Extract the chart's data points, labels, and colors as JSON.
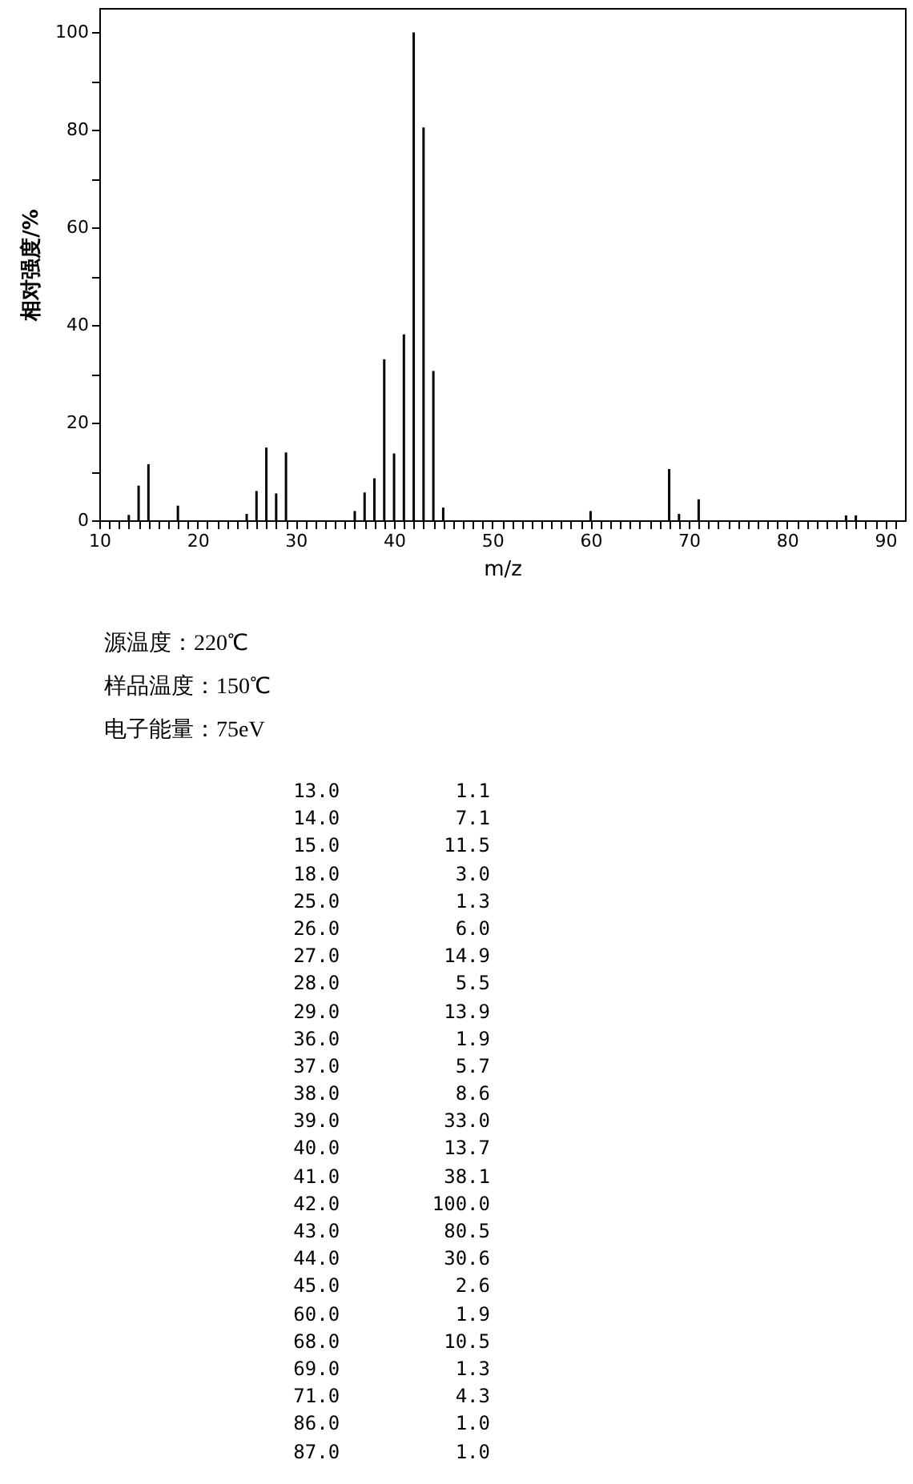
{
  "chart_data": [
    {
      "type": "bar",
      "xlabel": "m/z",
      "ylabel": "相对强度/%",
      "x": [
        13,
        14,
        15,
        18,
        25,
        26,
        27,
        28,
        29,
        36,
        37,
        38,
        39,
        40,
        41,
        42,
        43,
        44,
        45,
        60,
        68,
        69,
        71,
        86,
        87
      ],
      "series": [
        {
          "color": "#000000",
          "values": [
            1.1,
            7.1,
            11.5,
            3.0,
            1.3,
            6.0,
            14.9,
            5.5,
            13.9,
            1.9,
            5.7,
            8.6,
            33.0,
            13.7,
            38.1,
            100.0,
            80.5,
            30.6,
            2.6,
            1.9,
            10.5,
            1.3,
            4.3,
            1.0,
            1.0
          ]
        }
      ],
      "xlim": [
        10,
        92
      ],
      "ylim": [
        0,
        105
      ],
      "xticks": [
        10,
        {
          "value": 11,
          "label": null
        },
        {
          "value": 12,
          "label": null
        },
        {
          "value": 13,
          "label": null
        },
        {
          "value": 14,
          "label": null
        },
        {
          "value": 15,
          "label": null
        },
        {
          "value": 16,
          "label": null
        },
        {
          "value": 17,
          "label": null
        },
        {
          "value": 18,
          "label": null
        },
        {
          "value": 19,
          "label": null
        },
        20,
        {
          "value": 21,
          "label": null
        },
        {
          "value": 22,
          "label": null
        },
        {
          "value": 23,
          "label": null
        },
        {
          "value": 24,
          "label": null
        },
        {
          "value": 25,
          "label": null
        },
        {
          "value": 26,
          "label": null
        },
        {
          "value": 27,
          "label": null
        },
        {
          "value": 28,
          "label": null
        },
        {
          "value": 29,
          "label": null
        },
        30,
        {
          "value": 31,
          "label": null
        },
        {
          "value": 32,
          "label": null
        },
        {
          "value": 33,
          "label": null
        },
        {
          "value": 34,
          "label": null
        },
        {
          "value": 35,
          "label": null
        },
        {
          "value": 36,
          "label": null
        },
        {
          "value": 37,
          "label": null
        },
        {
          "value": 38,
          "label": null
        },
        {
          "value": 39,
          "label": null
        },
        40,
        {
          "value": 41,
          "label": null
        },
        {
          "value": 42,
          "label": null
        },
        {
          "value": 43,
          "label": null
        },
        {
          "value": 44,
          "label": null
        },
        {
          "value": 45,
          "label": null
        },
        {
          "value": 46,
          "label": null
        },
        {
          "value": 47,
          "label": null
        },
        {
          "value": 48,
          "label": null
        },
        {
          "value": 49,
          "label": null
        },
        50,
        {
          "value": 51,
          "label": null
        },
        {
          "value": 52,
          "label": null
        },
        {
          "value": 53,
          "label": null
        },
        {
          "value": 54,
          "label": null
        },
        {
          "value": 55,
          "label": null
        },
        {
          "value": 56,
          "label": null
        },
        {
          "value": 57,
          "label": null
        },
        {
          "value": 58,
          "label": null
        },
        {
          "value": 59,
          "label": null
        },
        60,
        {
          "value": 61,
          "label": null
        },
        {
          "value": 62,
          "label": null
        },
        {
          "value": 63,
          "label": null
        },
        {
          "value": 64,
          "label": null
        },
        {
          "value": 65,
          "label": null
        },
        {
          "value": 66,
          "label": null
        },
        {
          "value": 67,
          "label": null
        },
        {
          "value": 68,
          "label": null
        },
        {
          "value": 69,
          "label": null
        },
        70,
        {
          "value": 71,
          "label": null
        },
        {
          "value": 72,
          "label": null
        },
        {
          "value": 73,
          "label": null
        },
        {
          "value": 74,
          "label": null
        },
        {
          "value": 75,
          "label": null
        },
        {
          "value": 76,
          "label": null
        },
        {
          "value": 77,
          "label": null
        },
        {
          "value": 78,
          "label": null
        },
        {
          "value": 79,
          "label": null
        },
        80,
        {
          "value": 81,
          "label": null
        },
        {
          "value": 82,
          "label": null
        },
        {
          "value": 83,
          "label": null
        },
        {
          "value": 84,
          "label": null
        },
        {
          "value": 85,
          "label": null
        },
        {
          "value": 86,
          "label": null
        },
        {
          "value": 87,
          "label": null
        },
        {
          "value": 88,
          "label": null
        },
        {
          "value": 89,
          "label": null
        },
        90,
        {
          "value": 91,
          "label": null
        }
      ],
      "yticks": [
        0,
        {
          "value": 10,
          "label": null
        },
        20,
        {
          "value": 30,
          "label": null
        },
        40,
        {
          "value": 50,
          "label": null
        },
        60,
        {
          "value": 70,
          "label": null
        },
        80,
        {
          "value": 90,
          "label": null
        },
        100
      ],
      "grid": false,
      "annotations": [
        "源温度：220℃",
        "样品温度：150℃",
        "电子能量：75eV"
      ]
    },
    {
      "type": "other",
      "annotations": [
        "13.0          1.1",
        "14.0          7.1",
        "15.0         11.5",
        "18.0          3.0",
        "25.0          1.3",
        "26.0          6.0",
        "27.0         14.9",
        "28.0          5.5",
        "29.0         13.9",
        "36.0          1.9",
        "37.0          5.7",
        "38.0          8.6",
        "39.0         33.0",
        "40.0         13.7",
        "41.0         38.1",
        "42.0        100.0",
        "43.0         80.5",
        "44.0         30.6",
        "45.0          2.6",
        "60.0          1.9",
        "68.0         10.5",
        "69.0          1.3",
        "71.0          4.3",
        "86.0          1.0",
        "87.0          1.0"
      ]
    }
  ]
}
